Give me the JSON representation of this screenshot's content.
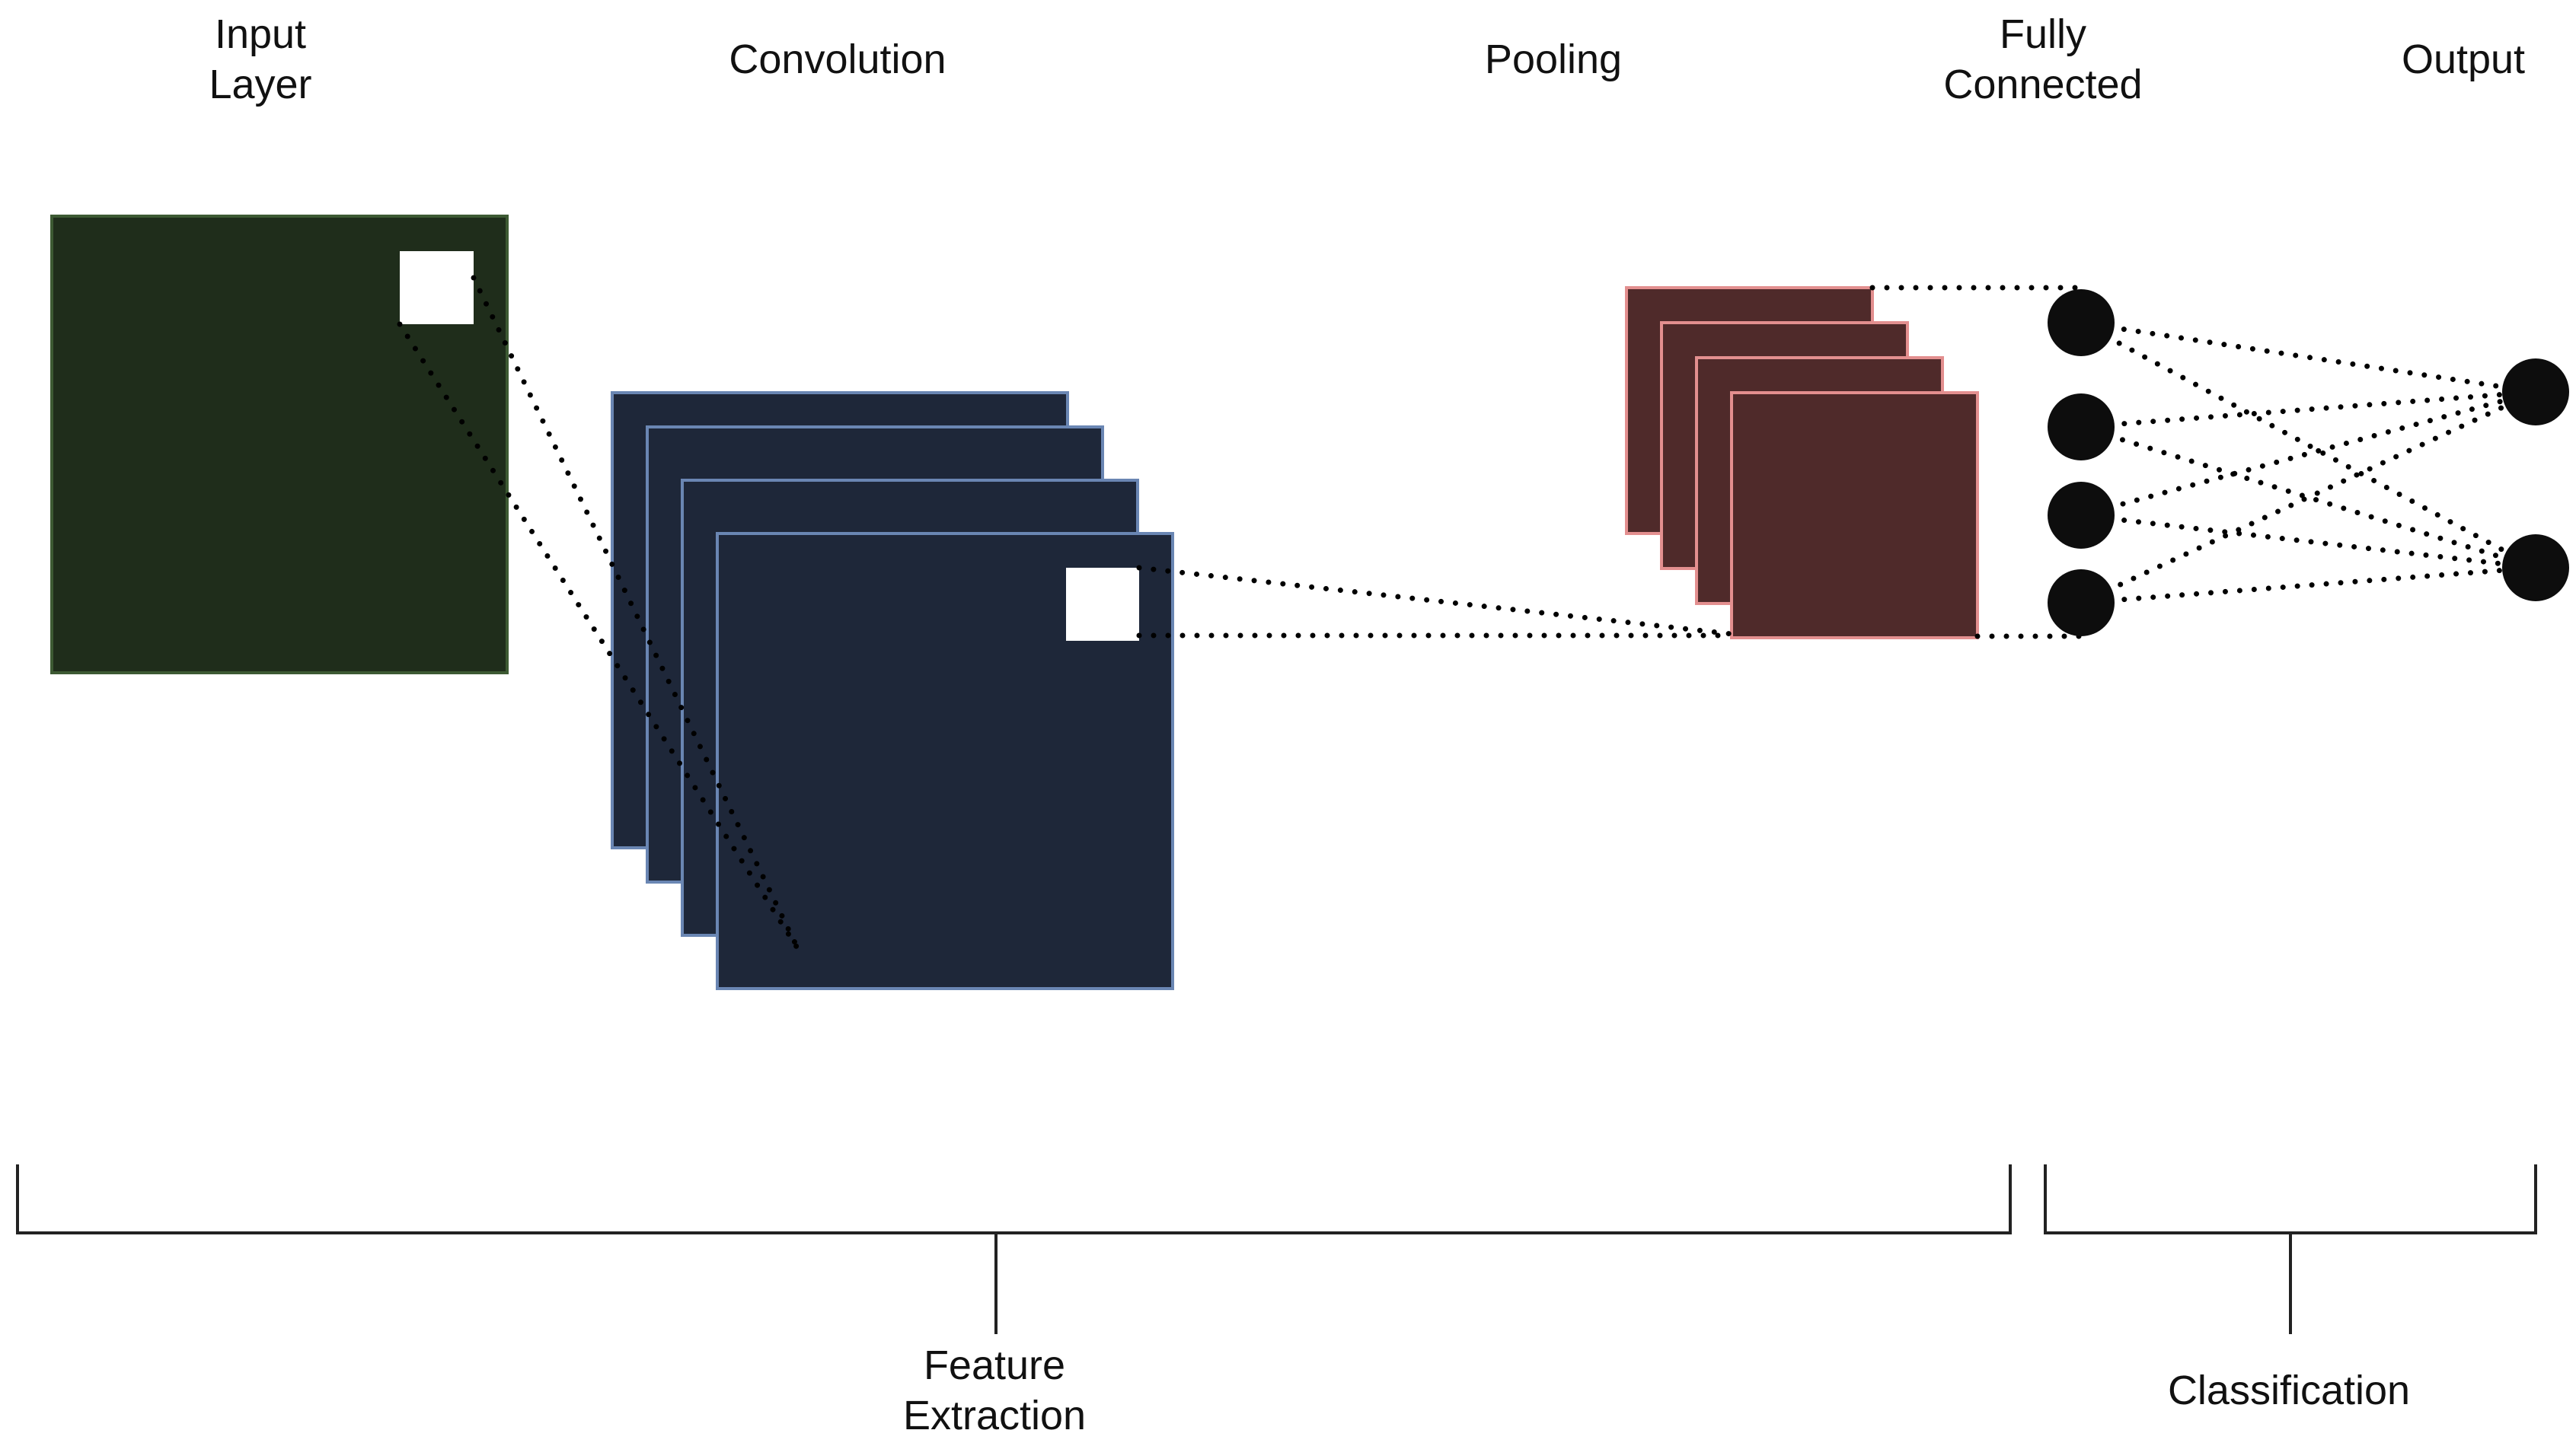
{
  "labels": {
    "input": [
      "Input",
      "Layer"
    ],
    "convolution": "Convolution",
    "pooling": "Pooling",
    "fully_connected": [
      "Fully",
      "Connected"
    ],
    "output": "Output",
    "feature_extraction": [
      "Feature",
      "Extraction"
    ],
    "classification": "Classification"
  },
  "colors": {
    "input_fill": "#1f2d1b",
    "input_stroke": "#3d5a33",
    "conv_fill": "#1e2739",
    "conv_stroke": "#6a86b3",
    "pool_fill": "#4f2a2a",
    "pool_stroke": "#e38f8f",
    "neuron": "#0d0d0d",
    "window": "#ffffff"
  },
  "structure": {
    "conv_maps": 4,
    "pool_maps": 4,
    "fc_neurons": 4,
    "output_neurons": 2
  }
}
